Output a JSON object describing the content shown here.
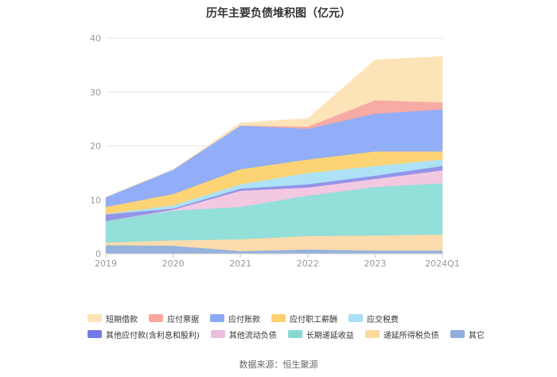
{
  "chart_data": {
    "type": "area",
    "stacked": true,
    "title": "历年主要负债堆积图（亿元）",
    "xlabel": "",
    "ylabel": "",
    "categories": [
      "2019",
      "2020",
      "2021",
      "2022",
      "2023",
      "2024Q1"
    ],
    "yticks": [
      "0",
      "10",
      "20",
      "30",
      "40"
    ],
    "ylim": [
      0,
      40
    ],
    "grid": true,
    "legend_position": "bottom",
    "series": [
      {
        "name": "其它",
        "color": "#8EAEDB",
        "values": [
          1.6,
          1.5,
          0.5,
          0.8,
          0.6,
          0.6
        ]
      },
      {
        "name": "递延所得税负债",
        "color": "#FCD9A8",
        "values": [
          0.5,
          1.0,
          2.2,
          2.5,
          2.8,
          3.0
        ]
      },
      {
        "name": "长期递延收益",
        "color": "#8DDDD8",
        "values": [
          4.0,
          5.5,
          6.0,
          7.5,
          9.0,
          9.5
        ]
      },
      {
        "name": "其他流动负债",
        "color": "#F2C6E0",
        "values": [
          0.0,
          0.2,
          3.0,
          1.5,
          1.5,
          2.4
        ]
      },
      {
        "name": "其他应付款(含利息和股利)",
        "color": "#8D8EE8",
        "values": [
          1.2,
          0.2,
          0.4,
          0.6,
          0.6,
          0.8
        ]
      },
      {
        "name": "应交税费",
        "color": "#A9E0F6",
        "values": [
          0.1,
          0.6,
          0.8,
          2.1,
          1.8,
          1.2
        ]
      },
      {
        "name": "应付职工薪酬",
        "color": "#FDD26E",
        "values": [
          1.3,
          2.1,
          2.8,
          2.5,
          2.7,
          1.5
        ]
      },
      {
        "name": "应付账款",
        "color": "#8CAAF8",
        "values": [
          1.8,
          4.5,
          8.1,
          5.7,
          7.0,
          7.8
        ]
      },
      {
        "name": "应付票据",
        "color": "#F7A6A0",
        "values": [
          0.0,
          0.0,
          0.0,
          0.4,
          2.5,
          1.3
        ]
      },
      {
        "name": "短期借款",
        "color": "#FDE3B4",
        "values": [
          0.0,
          0.0,
          0.5,
          1.5,
          7.5,
          8.5
        ]
      }
    ]
  },
  "legend_rows": [
    [
      {
        "label": "短期借款",
        "color": "#FDE3B4"
      },
      {
        "label": "应付票据",
        "color": "#F7A6A0"
      },
      {
        "label": "应付账款",
        "color": "#8CAAF8"
      },
      {
        "label": "应付职工薪酬",
        "color": "#FDD26E"
      },
      {
        "label": "应交税费",
        "color": "#A9E0F6"
      }
    ],
    [
      {
        "label": "其他应付款(含利息和股利)",
        "color": "#7579E7"
      },
      {
        "label": "其他流动负债",
        "color": "#E9BFE0"
      },
      {
        "label": "长期递延收益",
        "color": "#86D9D3"
      },
      {
        "label": "递延所得税负债",
        "color": "#FDD9A0"
      },
      {
        "label": "其它",
        "color": "#8EAEDB"
      }
    ]
  ],
  "source": "数据来源：恒生聚源"
}
